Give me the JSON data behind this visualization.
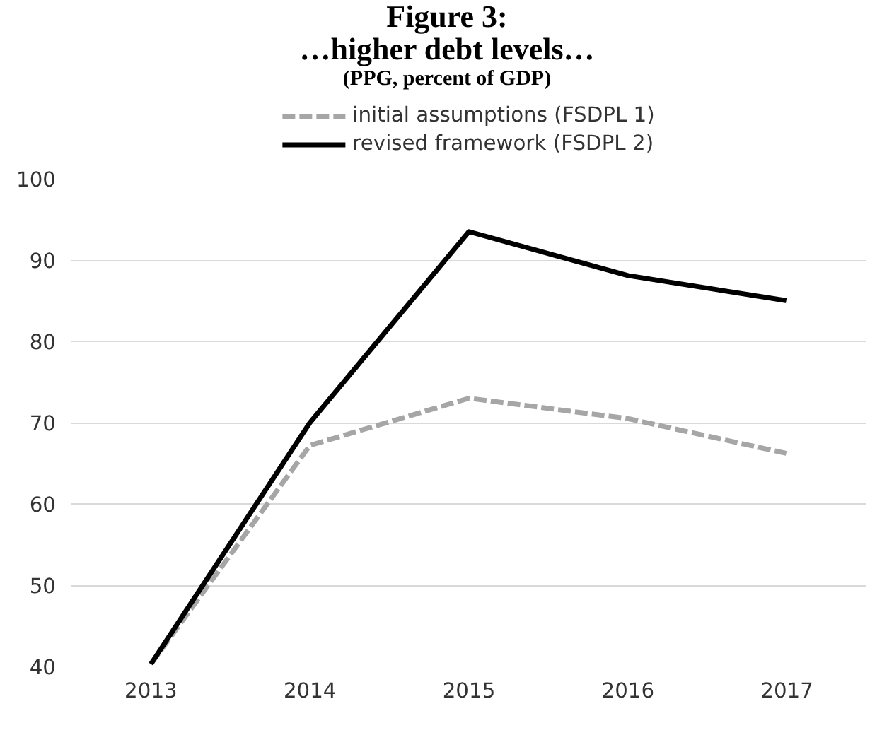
{
  "chart_data": {
    "type": "line",
    "title": "Figure 3:\n…higher debt levels…",
    "subtitle": "(PPG, percent of GDP)",
    "categories": [
      "2013",
      "2014",
      "2015",
      "2016",
      "2017"
    ],
    "series": [
      {
        "name": "initial assumptions (FSDPL 1)",
        "color": "#a6a6a6",
        "line_style": "dashed",
        "values": [
          40.3,
          67.2,
          73.0,
          70.5,
          66.2
        ]
      },
      {
        "name": "revised framework (FSDPL 2)",
        "color": "#000000",
        "line_style": "solid",
        "values": [
          40.3,
          70.0,
          93.5,
          88.1,
          85.0
        ]
      }
    ],
    "ylim": [
      40,
      100
    ],
    "yticks": [
      40,
      50,
      60,
      70,
      80,
      90,
      100
    ],
    "grid": "y",
    "legend": "top",
    "marker": "none"
  }
}
